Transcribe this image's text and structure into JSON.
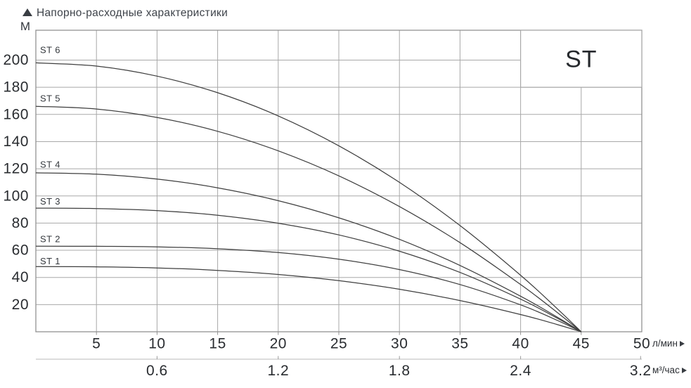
{
  "title": "Напорно-расходные характеристики",
  "series_badge": "ST",
  "y_axis": {
    "unit": "М",
    "ticks": [
      20,
      40,
      60,
      80,
      100,
      120,
      140,
      160,
      180,
      200
    ]
  },
  "x_axis": {
    "unit": "л/мин",
    "ticks": [
      5,
      10,
      15,
      20,
      25,
      30,
      35,
      40,
      45,
      50
    ]
  },
  "x_axis_secondary": {
    "unit": "м³/час",
    "ticks": [
      {
        "label": "0.6",
        "at_lpm": 10
      },
      {
        "label": "1.2",
        "at_lpm": 20
      },
      {
        "label": "1.8",
        "at_lpm": 30
      },
      {
        "label": "2.4",
        "at_lpm": 40
      },
      {
        "label": "3.2",
        "at_lpm": 49.9
      }
    ]
  },
  "chart_data": {
    "type": "line",
    "title": "Напорно-расходные характеристики",
    "xlabel": "л/мин",
    "x2label": "м³/час",
    "ylabel": "М",
    "xlim": [
      0,
      50
    ],
    "ylim": [
      0,
      222
    ],
    "grid": true,
    "legend_position": "curve-start-labels",
    "x": [
      0,
      5,
      10,
      15,
      20,
      25,
      30,
      35,
      40,
      43,
      45
    ],
    "series": [
      {
        "name": "ST 6",
        "values": [
          198,
          195.6,
          188.2,
          176.0,
          158.9,
          136.9,
          110.0,
          78.2,
          41.6,
          17.2,
          0
        ]
      },
      {
        "name": "ST 5",
        "values": [
          166,
          164.0,
          157.8,
          147.6,
          133.2,
          114.8,
          92.2,
          65.6,
          34.8,
          14.4,
          0
        ]
      },
      {
        "name": "ST 4",
        "values": [
          117,
          116.0,
          112.4,
          106.0,
          96.5,
          83.9,
          68.1,
          48.8,
          26.2,
          10.9,
          0
        ]
      },
      {
        "name": "ST 3",
        "values": [
          91,
          90.7,
          89.2,
          85.8,
          79.9,
          71.3,
          59.3,
          43.7,
          24.0,
          10.1,
          0
        ]
      },
      {
        "name": "ST 2",
        "values": [
          63,
          62.9,
          62.5,
          61.1,
          58.3,
          53.4,
          45.8,
          34.8,
          19.8,
          8.5,
          0
        ]
      },
      {
        "name": "ST 1",
        "values": [
          48,
          47.8,
          47.0,
          45.2,
          42.2,
          37.6,
          31.3,
          23.0,
          12.7,
          5.4,
          0
        ]
      }
    ]
  },
  "colors": {
    "grid": "#a8a8a8",
    "frame": "#919191",
    "curve": "#3f3f3f",
    "secondary_axis": "#c6c6c6",
    "tick": "#9a9a9a",
    "text_dark": "#292c30",
    "text_label": "#34383d",
    "badge_border": "#a8a8a8",
    "badge_text": "#26292d"
  }
}
